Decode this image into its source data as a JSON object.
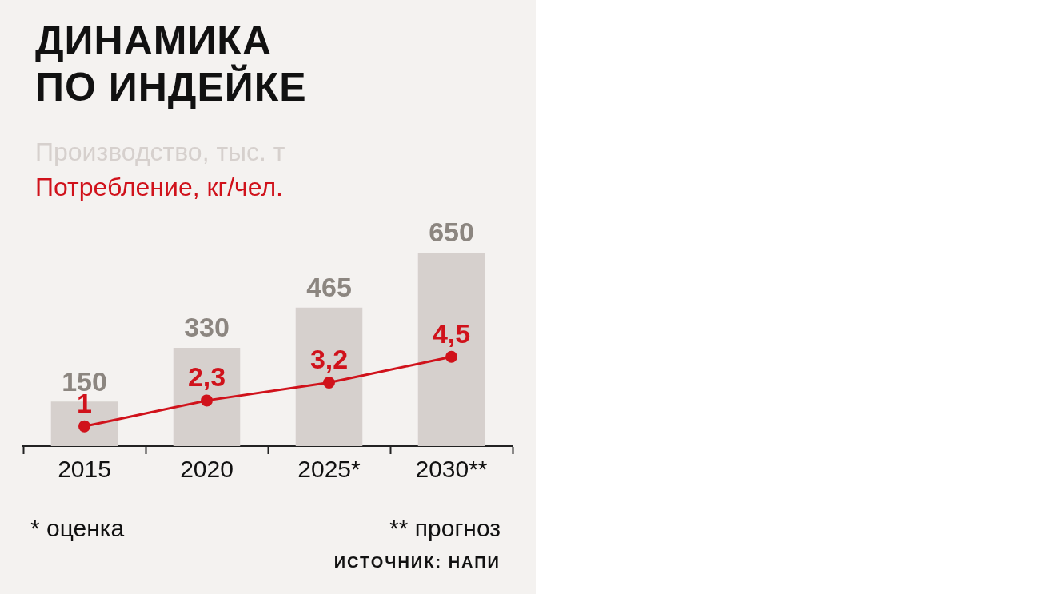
{
  "chart_data": {
    "type": "bar",
    "title": "ДИНАМИКА\nПО ИНДЕЙКЕ",
    "categories": [
      "2015",
      "2020",
      "2025*",
      "2030**"
    ],
    "series": [
      {
        "name": "Производство, тыс. т",
        "color": "#d6d0cd",
        "values": [
          150,
          330,
          465,
          650
        ],
        "value_labels": [
          "150",
          "330",
          "465",
          "650"
        ]
      },
      {
        "name": "Потребление, кг/чел.",
        "type": "line",
        "axis": "y2",
        "color": "#d0121b",
        "values": [
          1,
          2.3,
          3.2,
          4.5
        ],
        "value_labels": [
          "1",
          "2,3",
          "3,2",
          "4,5"
        ]
      }
    ],
    "legend": "top left",
    "marker": "circle",
    "grid": false,
    "annotations": [
      "* оценка",
      "** прогноз",
      "ИСТОЧНИК: НАПИ"
    ]
  }
}
